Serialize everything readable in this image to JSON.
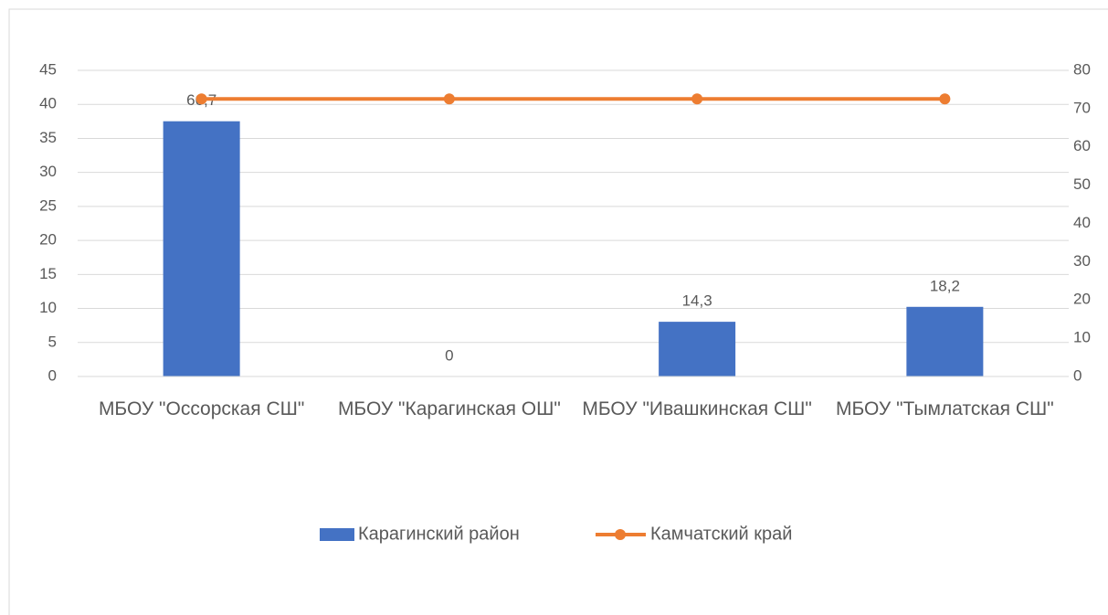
{
  "chart_data": {
    "type": "bar",
    "categories": [
      "МБОУ \"Оссорская СШ\"",
      "МБОУ \"Карагинская ОШ\"",
      "МБОУ \"Ивашкинская СШ\"",
      "МБОУ \"Тымлатская СШ\""
    ],
    "series": [
      {
        "name": "Карагинский район",
        "type": "bar",
        "color": "#4472c4",
        "axis": "y2",
        "values": [
          66.7,
          0,
          14.3,
          18.2
        ],
        "value_labels": [
          "66,7",
          "0",
          "14,3",
          "18,2"
        ]
      },
      {
        "name": "Камчатский край",
        "type": "line",
        "color": "#ed7d31",
        "axis": "y",
        "values": [
          40.8,
          40.8,
          40.8,
          40.8
        ]
      }
    ],
    "ylim": [
      0,
      45
    ],
    "yticks": [
      0,
      5,
      10,
      15,
      20,
      25,
      30,
      35,
      40,
      45
    ],
    "y2lim": [
      0,
      80
    ],
    "y2ticks": [
      0,
      10,
      20,
      30,
      40,
      50,
      60,
      70,
      80
    ],
    "grid": true,
    "legend": "bottom"
  }
}
